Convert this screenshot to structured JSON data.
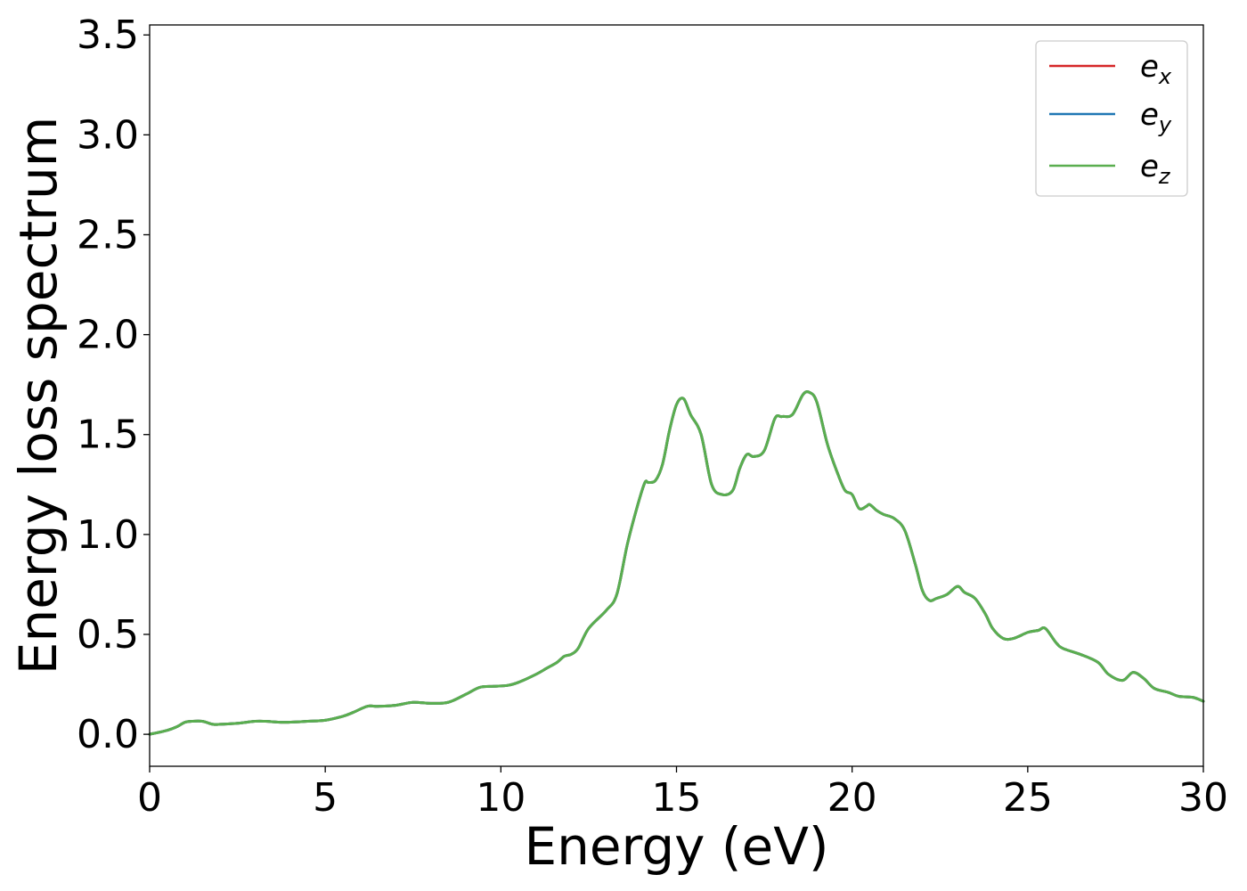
{
  "chart_data": {
    "type": "line",
    "title": "",
    "xlabel": "Energy (eV)",
    "ylabel": "Energy loss spectrum",
    "xlim": [
      0,
      30
    ],
    "ylim": [
      -0.16,
      3.55
    ],
    "xticks": [
      0,
      5,
      10,
      15,
      20,
      25,
      30
    ],
    "xtick_labels": [
      "0",
      "5",
      "10",
      "15",
      "20",
      "25",
      "30"
    ],
    "yticks": [
      0.0,
      0.5,
      1.0,
      1.5,
      2.0,
      2.5,
      3.0,
      3.5
    ],
    "ytick_labels": [
      "0.0",
      "0.5",
      "1.0",
      "1.5",
      "2.0",
      "2.5",
      "3.0",
      "3.5"
    ],
    "grid": false,
    "legend_position": "top-right",
    "x": [
      0,
      0.5,
      0.8,
      1.0,
      1.2,
      1.5,
      1.8,
      2.0,
      2.5,
      3.0,
      3.3,
      3.8,
      4.5,
      5.0,
      5.5,
      5.8,
      6.2,
      6.5,
      7.0,
      7.5,
      8.0,
      8.5,
      9.0,
      9.4,
      9.8,
      10.2,
      10.5,
      11.0,
      11.3,
      11.6,
      11.8,
      12.0,
      12.2,
      12.5,
      13.0,
      13.3,
      13.6,
      13.9,
      14.1,
      14.2,
      14.4,
      14.6,
      14.8,
      15.0,
      15.2,
      15.4,
      15.7,
      16.0,
      16.3,
      16.6,
      16.8,
      17.0,
      17.2,
      17.5,
      17.8,
      18.0,
      18.3,
      18.6,
      18.8,
      19.0,
      19.3,
      19.6,
      19.8,
      20.0,
      20.2,
      20.4,
      20.5,
      20.7,
      20.9,
      21.2,
      21.5,
      21.8,
      22.0,
      22.2,
      22.4,
      22.7,
      23.0,
      23.2,
      23.5,
      23.8,
      24.0,
      24.3,
      24.6,
      25.0,
      25.3,
      25.5,
      25.8,
      26.0,
      26.5,
      27.0,
      27.3,
      27.7,
      28.0,
      28.3,
      28.6,
      29.0,
      29.3,
      29.7,
      30.0
    ],
    "series": [
      {
        "name": "e_x",
        "color": "#d62728",
        "values": [
          0.0,
          0.02,
          0.04,
          0.06,
          0.065,
          0.065,
          0.05,
          0.05,
          0.055,
          0.065,
          0.065,
          0.06,
          0.065,
          0.07,
          0.09,
          0.11,
          0.14,
          0.14,
          0.145,
          0.16,
          0.155,
          0.16,
          0.2,
          0.235,
          0.24,
          0.245,
          0.26,
          0.3,
          0.33,
          0.36,
          0.39,
          0.4,
          0.43,
          0.53,
          0.62,
          0.7,
          0.95,
          1.15,
          1.26,
          1.26,
          1.27,
          1.35,
          1.52,
          1.65,
          1.68,
          1.6,
          1.5,
          1.25,
          1.2,
          1.22,
          1.33,
          1.4,
          1.39,
          1.42,
          1.58,
          1.59,
          1.6,
          1.7,
          1.71,
          1.66,
          1.45,
          1.3,
          1.22,
          1.2,
          1.13,
          1.14,
          1.15,
          1.12,
          1.1,
          1.08,
          1.02,
          0.85,
          0.72,
          0.67,
          0.68,
          0.7,
          0.74,
          0.71,
          0.68,
          0.6,
          0.53,
          0.48,
          0.48,
          0.51,
          0.52,
          0.53,
          0.46,
          0.43,
          0.4,
          0.36,
          0.3,
          0.27,
          0.31,
          0.28,
          0.23,
          0.21,
          0.19,
          0.185,
          0.165
        ]
      },
      {
        "name": "e_y",
        "color": "#1f77b4",
        "values": [
          0.0,
          0.02,
          0.04,
          0.06,
          0.065,
          0.065,
          0.05,
          0.05,
          0.055,
          0.065,
          0.065,
          0.06,
          0.065,
          0.07,
          0.09,
          0.11,
          0.14,
          0.14,
          0.145,
          0.16,
          0.155,
          0.16,
          0.2,
          0.235,
          0.24,
          0.245,
          0.26,
          0.3,
          0.33,
          0.36,
          0.39,
          0.4,
          0.43,
          0.53,
          0.62,
          0.7,
          0.95,
          1.15,
          1.26,
          1.26,
          1.27,
          1.35,
          1.52,
          1.65,
          1.68,
          1.6,
          1.5,
          1.25,
          1.2,
          1.22,
          1.33,
          1.4,
          1.39,
          1.42,
          1.58,
          1.59,
          1.6,
          1.7,
          1.71,
          1.66,
          1.45,
          1.3,
          1.22,
          1.2,
          1.13,
          1.14,
          1.15,
          1.12,
          1.1,
          1.08,
          1.02,
          0.85,
          0.72,
          0.67,
          0.68,
          0.7,
          0.74,
          0.71,
          0.68,
          0.6,
          0.53,
          0.48,
          0.48,
          0.51,
          0.52,
          0.53,
          0.46,
          0.43,
          0.4,
          0.36,
          0.3,
          0.27,
          0.31,
          0.28,
          0.23,
          0.21,
          0.19,
          0.185,
          0.165
        ]
      },
      {
        "name": "e_z",
        "color": "#5aae4f",
        "values": [
          0.0,
          0.02,
          0.04,
          0.06,
          0.065,
          0.065,
          0.05,
          0.05,
          0.055,
          0.065,
          0.065,
          0.06,
          0.065,
          0.07,
          0.09,
          0.11,
          0.14,
          0.14,
          0.145,
          0.16,
          0.155,
          0.16,
          0.2,
          0.235,
          0.24,
          0.245,
          0.26,
          0.3,
          0.33,
          0.36,
          0.39,
          0.4,
          0.43,
          0.53,
          0.62,
          0.7,
          0.95,
          1.15,
          1.26,
          1.26,
          1.27,
          1.35,
          1.52,
          1.65,
          1.68,
          1.6,
          1.5,
          1.25,
          1.2,
          1.22,
          1.33,
          1.4,
          1.39,
          1.42,
          1.58,
          1.59,
          1.6,
          1.7,
          1.71,
          1.66,
          1.45,
          1.3,
          1.22,
          1.2,
          1.13,
          1.14,
          1.15,
          1.12,
          1.1,
          1.08,
          1.02,
          0.85,
          0.72,
          0.67,
          0.68,
          0.7,
          0.74,
          0.71,
          0.68,
          0.6,
          0.53,
          0.48,
          0.48,
          0.51,
          0.52,
          0.53,
          0.46,
          0.43,
          0.4,
          0.36,
          0.3,
          0.27,
          0.31,
          0.28,
          0.23,
          0.21,
          0.19,
          0.185,
          0.165
        ]
      }
    ],
    "legend": [
      {
        "base": "e",
        "sub": "x",
        "color": "#d62728"
      },
      {
        "base": "e",
        "sub": "y",
        "color": "#1f77b4"
      },
      {
        "base": "e",
        "sub": "z",
        "color": "#5aae4f"
      }
    ]
  }
}
